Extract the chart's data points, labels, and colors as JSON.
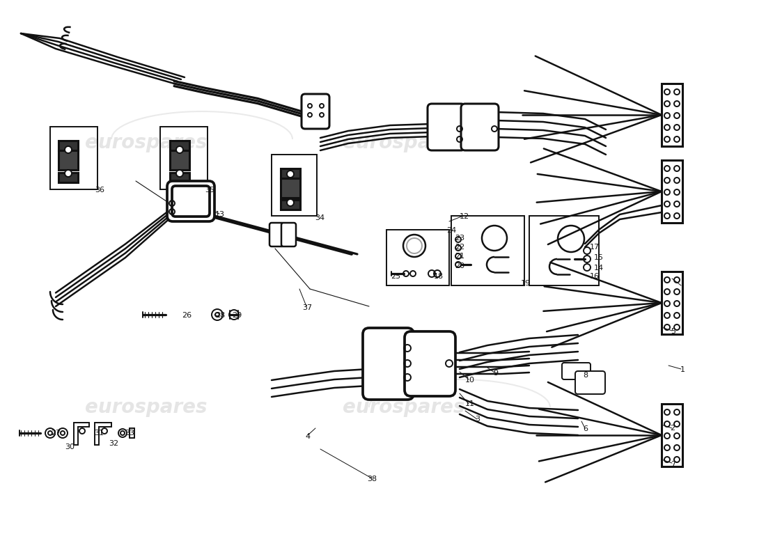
{
  "bg_color": "#ffffff",
  "line_color": "#111111",
  "wm_color": "#cccccc",
  "wm_text": "eurospares",
  "lw": 1.4,
  "lw_thick": 2.2,
  "lw_pipe": 1.8
}
